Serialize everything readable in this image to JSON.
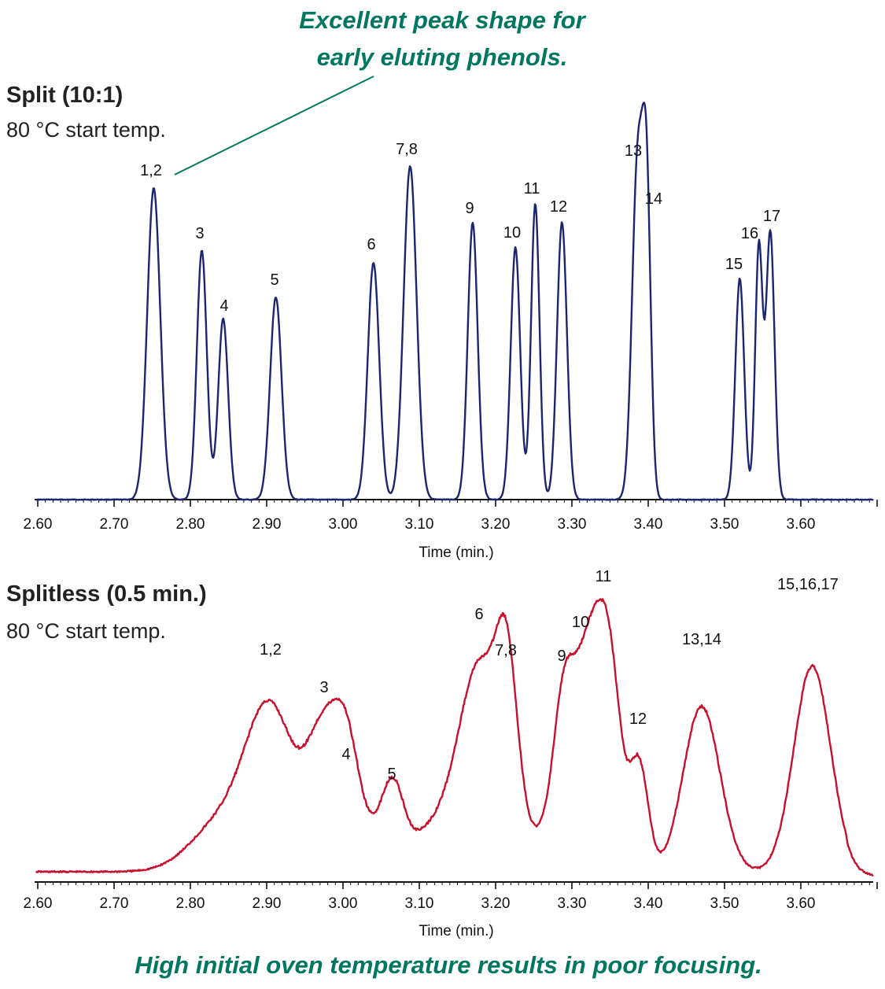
{
  "annotations": {
    "top_callout_line1": "Excellent peak shape for",
    "top_callout_line2": "early eluting phenols.",
    "bottom_callout": "High initial oven temperature results in poor focusing.",
    "accent_color": "#00775f"
  },
  "chart_data": [
    {
      "type": "line",
      "title": "Split (10:1)",
      "subtitle": "80 °C start temp.",
      "xlabel": "Time (min.)",
      "ylabel": "",
      "xlim": [
        2.6,
        3.7
      ],
      "xticks": [
        "2.60",
        "2.70",
        "2.80",
        "2.90",
        "3.00",
        "3.10",
        "3.20",
        "3.30",
        "3.40",
        "3.50",
        "3.60"
      ],
      "grid": false,
      "color": "#1b2670",
      "peaks": [
        {
          "label": "1,2",
          "x": 2.752,
          "y": 100
        },
        {
          "label": "3",
          "x": 2.815,
          "y": 80
        },
        {
          "label": "4",
          "x": 2.843,
          "y": 58
        },
        {
          "label": "5",
          "x": 2.912,
          "y": 65
        },
        {
          "label": "6",
          "x": 3.04,
          "y": 76
        },
        {
          "label": "7,8",
          "x": 3.088,
          "y": 107
        },
        {
          "label": "9",
          "x": 3.17,
          "y": 89
        },
        {
          "label": "10",
          "x": 3.226,
          "y": 81
        },
        {
          "label": "11",
          "x": 3.252,
          "y": 95
        },
        {
          "label": "12",
          "x": 3.287,
          "y": 89
        },
        {
          "label": "13",
          "x": 3.386,
          "y": 107
        },
        {
          "label": "14",
          "x": 3.398,
          "y": 91
        },
        {
          "label": "15",
          "x": 3.52,
          "y": 71
        },
        {
          "label": "16",
          "x": 3.545,
          "y": 81
        },
        {
          "label": "17",
          "x": 3.56,
          "y": 86
        }
      ]
    },
    {
      "type": "line",
      "title": "Splitless (0.5 min.)",
      "subtitle": "80 °C start temp.",
      "xlabel": "Time (min.)",
      "ylabel": "",
      "xlim": [
        2.6,
        3.7
      ],
      "xticks": [
        "2.60",
        "2.70",
        "2.80",
        "2.90",
        "3.00",
        "3.10",
        "3.20",
        "3.30",
        "3.40",
        "3.50",
        "3.60"
      ],
      "grid": false,
      "color": "#c8102e",
      "peaks": [
        {
          "label": "1,2",
          "x": 2.905,
          "y": 100
        },
        {
          "label": "3",
          "x": 2.975,
          "y": 81
        },
        {
          "label": "4",
          "x": 3.005,
          "y": 52
        },
        {
          "label": "5",
          "x": 3.065,
          "y": 41
        },
        {
          "label": "6",
          "x": 3.18,
          "y": 117
        },
        {
          "label": "7,8",
          "x": 3.215,
          "y": 100
        },
        {
          "label": "9",
          "x": 3.29,
          "y": 97
        },
        {
          "label": "10",
          "x": 3.32,
          "y": 115
        },
        {
          "label": "11",
          "x": 3.348,
          "y": 135
        },
        {
          "label": "12",
          "x": 3.388,
          "y": 67
        },
        {
          "label": "13,14",
          "x": 3.47,
          "y": 105
        },
        {
          "label": "15,16,17",
          "x": 3.615,
          "y": 131
        }
      ]
    }
  ]
}
